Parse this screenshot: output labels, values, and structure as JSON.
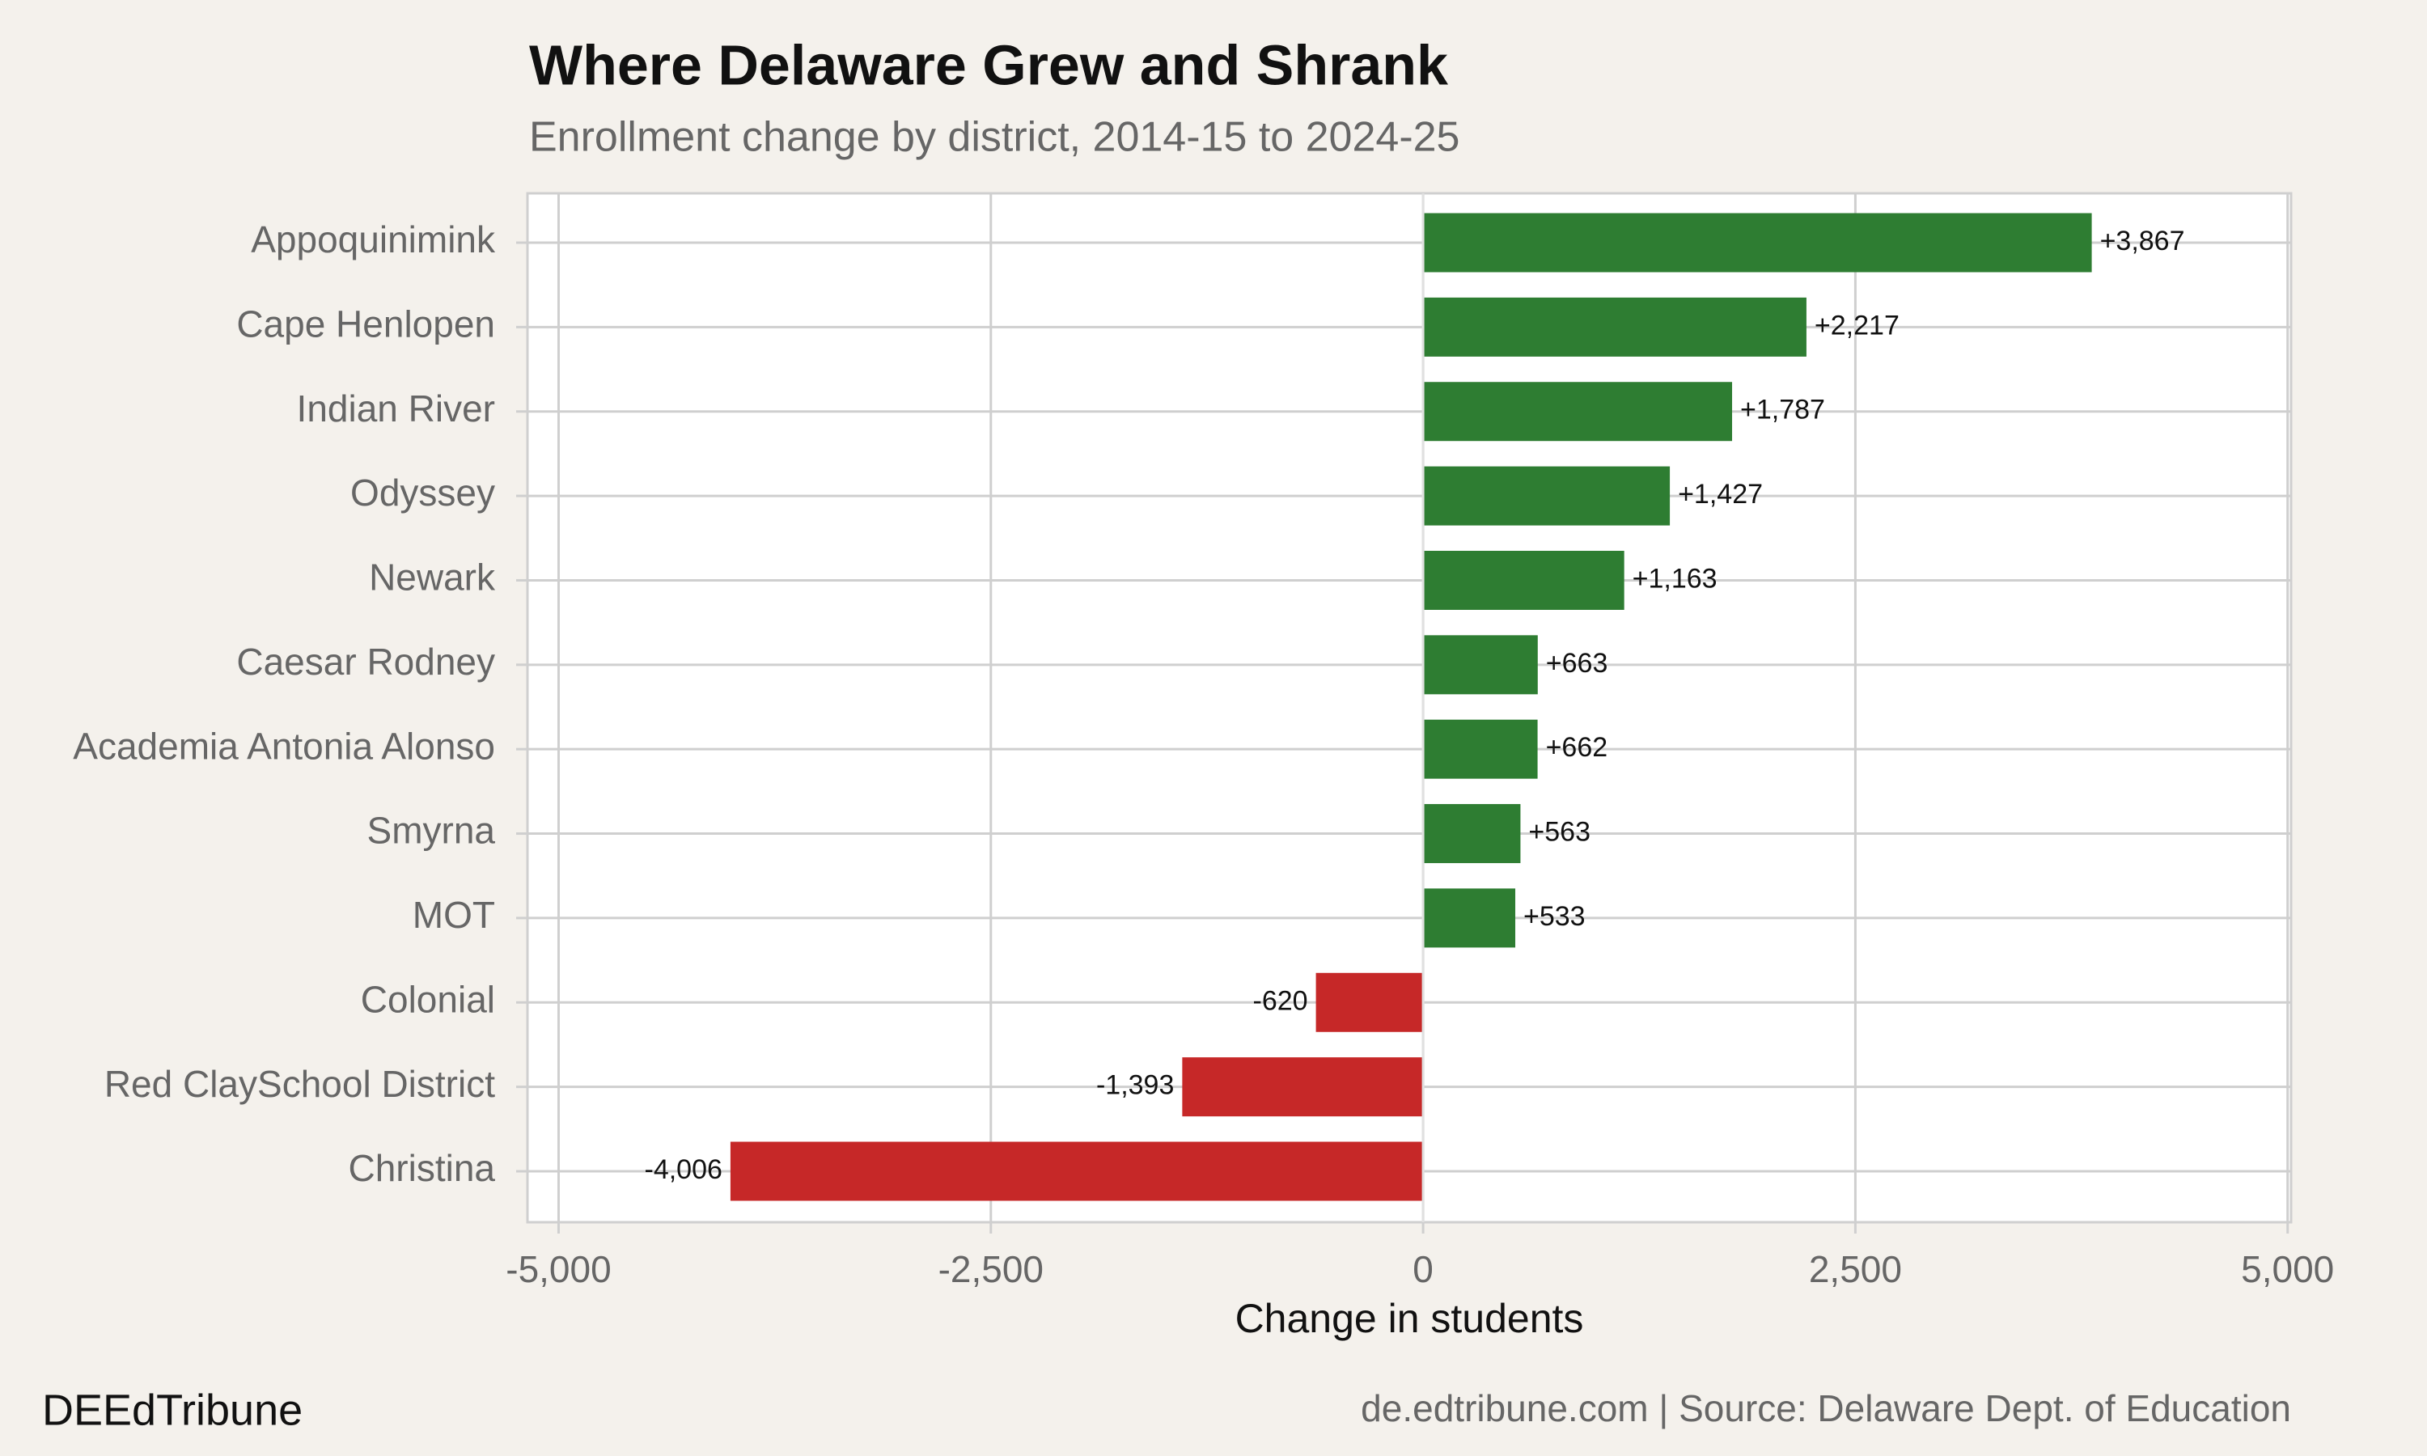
{
  "chart_data": {
    "type": "hbar",
    "title": "Where Delaware Grew and Shrank",
    "subtitle": "Enrollment change by district, 2014-15 to 2024-25",
    "x_label": "Change in students",
    "categories": [
      "Appoquinimink",
      "Cape Henlopen",
      "Indian River",
      "Odyssey",
      "Newark",
      "Caesar Rodney",
      "Academia Antonia Alonso",
      "Smyrna",
      "MOT",
      "Colonial",
      "Red ClaySchool District",
      "Christina"
    ],
    "values": [
      3867,
      2217,
      1787,
      1427,
      1163,
      663,
      662,
      563,
      533,
      -620,
      -1393,
      -4006
    ],
    "value_labels": [
      "+3,867",
      "+2,217",
      "+1,787",
      "+1,427",
      "+1,163",
      "+663",
      "+662",
      "+563",
      "+533",
      "-620",
      "-1,393",
      "-4,006"
    ],
    "colors": [
      "#2e7d32",
      "#2e7d32",
      "#2e7d32",
      "#2e7d32",
      "#2e7d32",
      "#2e7d32",
      "#2e7d32",
      "#2e7d32",
      "#2e7d32",
      "#c62828",
      "#c62828",
      "#c62828"
    ],
    "xlim": [
      -5180,
      5020
    ],
    "xticks": [
      {
        "value": -5000,
        "label": "-5,000"
      },
      {
        "value": -2500,
        "label": "-2,500"
      },
      0,
      {
        "value": 2500,
        "label": "2,500"
      },
      {
        "value": 5000,
        "label": "5,000"
      }
    ],
    "grid": true,
    "brand": "DEEdTribune",
    "source": "de.edtribune.com | Source: Delaware Dept. of Education"
  }
}
